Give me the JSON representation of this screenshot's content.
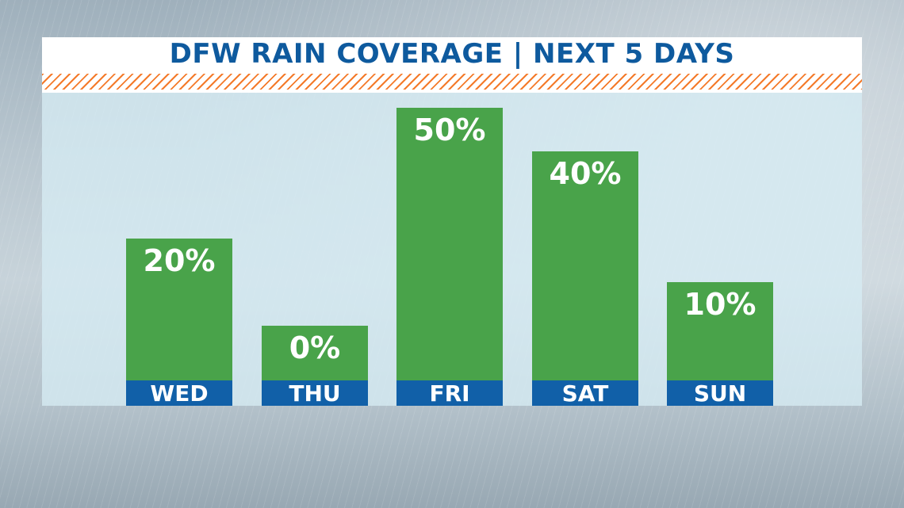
{
  "chart_data": {
    "type": "bar",
    "title": "DFW RAIN COVERAGE | NEXT 5 DAYS",
    "categories": [
      "WED",
      "THU",
      "FRI",
      "SAT",
      "SUN"
    ],
    "values": [
      20,
      0,
      50,
      40,
      10
    ],
    "value_labels": [
      "20%",
      "0%",
      "50%",
      "40%",
      "10%"
    ],
    "unit": "%",
    "ylim": [
      0,
      60
    ],
    "grid": false,
    "legend": "none"
  },
  "colors": {
    "bar": "#49a34a",
    "label_band": "#1160a8",
    "title_text": "#0e5a9e",
    "stripe": "#f47a2a",
    "label_text": "#ffffff"
  }
}
